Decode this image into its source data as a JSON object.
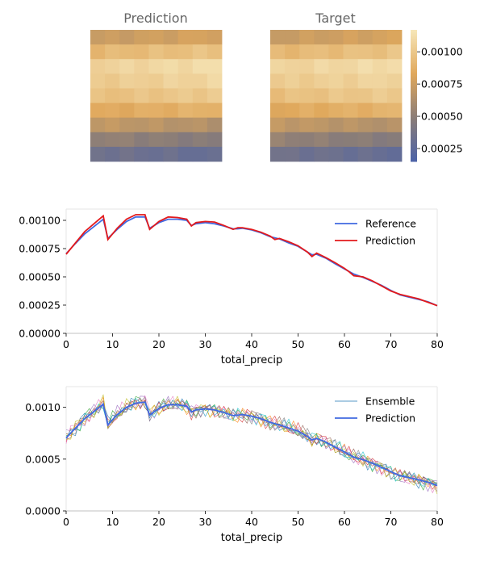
{
  "heatmaps": {
    "left_title": "Prediction",
    "right_title": "Target",
    "colorbar_ticks": [
      "0.00025",
      "0.00050",
      "0.00075",
      "0.00100"
    ],
    "colorbar_tick_values": [
      0.00025,
      0.0005,
      0.00075,
      0.001
    ],
    "colorbar_range": [
      0.00015,
      0.00117
    ],
    "colormap": [
      "#4c63a8",
      "#8a7d78",
      "#e0a85c",
      "#f6e6b8"
    ]
  },
  "chart_data": [
    {
      "type": "line",
      "xlabel": "total_precip",
      "ylabel": "",
      "xlim": [
        0,
        80
      ],
      "ylim": [
        0,
        0.0011
      ],
      "xticks": [
        "0",
        "10",
        "20",
        "30",
        "40",
        "50",
        "60",
        "70",
        "80"
      ],
      "yticks": [
        "0.00000",
        "0.00025",
        "0.00050",
        "0.00075",
        "0.00100"
      ],
      "legend_position": "top-right",
      "series": [
        {
          "name": "Reference",
          "color": "#4169e1",
          "x": [
            0,
            2,
            4,
            6,
            8,
            9,
            11,
            13,
            15,
            17,
            18,
            20,
            22,
            24,
            26,
            27,
            28,
            30,
            32,
            34,
            36,
            37,
            38,
            40,
            42,
            44,
            46,
            48,
            50,
            52,
            53,
            54,
            56,
            58,
            60,
            62,
            64,
            66,
            68,
            70,
            72,
            74,
            76,
            78,
            80
          ],
          "y": [
            0.000705,
            0.000795,
            0.00088,
            0.000945,
            0.00101,
            0.00084,
            0.00092,
            0.00099,
            0.00103,
            0.00103,
            0.00093,
            0.00098,
            0.00101,
            0.00101,
            0.001,
            0.000955,
            0.00097,
            0.00098,
            0.00097,
            0.00095,
            0.000925,
            0.000925,
            0.00093,
            0.000915,
            0.00089,
            0.000855,
            0.000835,
            0.0008,
            0.00077,
            0.00072,
            0.000695,
            0.0007,
            0.000665,
            0.000615,
            0.00057,
            0.000525,
            0.000495,
            0.00046,
            0.000425,
            0.00038,
            0.00034,
            0.00032,
            0.0003,
            0.00028,
            0.000245
          ]
        },
        {
          "name": "Prediction",
          "color": "#e31a1c",
          "x": [
            0,
            2,
            4,
            6,
            8,
            9,
            11,
            13,
            15,
            17,
            18,
            20,
            22,
            24,
            26,
            27,
            28,
            30,
            32,
            34,
            36,
            37,
            38,
            40,
            42,
            44,
            45,
            46,
            48,
            50,
            52,
            53,
            54,
            56,
            58,
            60,
            61,
            62,
            64,
            66,
            68,
            70,
            72,
            74,
            76,
            78,
            80
          ],
          "y": [
            0.0007,
            0.0008,
            0.0009,
            0.00097,
            0.00104,
            0.00083,
            0.00093,
            0.00101,
            0.00105,
            0.00105,
            0.00092,
            0.00099,
            0.00103,
            0.001025,
            0.00101,
            0.00095,
            0.00098,
            0.00099,
            0.000985,
            0.000955,
            0.00092,
            0.000935,
            0.000935,
            0.00092,
            0.000895,
            0.00086,
            0.00083,
            0.00084,
            0.00081,
            0.000775,
            0.00072,
            0.00068,
            0.00071,
            0.00067,
            0.000625,
            0.000575,
            0.000545,
            0.00051,
            0.0005,
            0.000465,
            0.00042,
            0.000375,
            0.000345,
            0.000325,
            0.000305,
            0.000275,
            0.000245
          ]
        }
      ]
    },
    {
      "type": "line",
      "xlabel": "total_precip",
      "ylabel": "",
      "xlim": [
        0,
        80
      ],
      "ylim": [
        0,
        0.0012
      ],
      "xticks": [
        "0",
        "10",
        "20",
        "30",
        "40",
        "50",
        "60",
        "70",
        "80"
      ],
      "yticks": [
        "0.0000",
        "0.0005",
        "0.0010"
      ],
      "legend_position": "top-right",
      "ensemble_members": 10,
      "ensemble_colors": [
        "#1f77b4",
        "#ff7f0e",
        "#2ca02c",
        "#d62728",
        "#9467bd",
        "#8c564b",
        "#e377c2",
        "#7f7f7f",
        "#bcbd22",
        "#17becf"
      ],
      "series": [
        {
          "name": "Ensemble",
          "color": "#1f77b4",
          "x": [
            0,
            2,
            4,
            6,
            8,
            9,
            11,
            13,
            15,
            17,
            18,
            20,
            22,
            24,
            26,
            27,
            28,
            30,
            32,
            34,
            36,
            37,
            38,
            40,
            42,
            44,
            46,
            48,
            50,
            52,
            53,
            54,
            56,
            58,
            60,
            62,
            64,
            66,
            68,
            70,
            72,
            74,
            76,
            78,
            80
          ],
          "y": [
            0.00071,
            0.0008,
            0.00089,
            0.00096,
            0.00104,
            0.00083,
            0.00093,
            0.001,
            0.00104,
            0.00106,
            0.00093,
            0.00099,
            0.00103,
            0.00103,
            0.00101,
            0.00096,
            0.000975,
            0.000985,
            0.000975,
            0.00095,
            0.00092,
            0.000925,
            0.00093,
            0.000915,
            0.00089,
            0.00085,
            0.00083,
            0.0008,
            0.00077,
            0.00072,
            0.00068,
            0.0007,
            0.00066,
            0.000615,
            0.00057,
            0.00052,
            0.000495,
            0.00046,
            0.00042,
            0.000375,
            0.00034,
            0.00032,
            0.0003,
            0.000275,
            0.000245
          ]
        },
        {
          "name": "Prediction",
          "color": "#4169e1",
          "x": [
            0,
            2,
            4,
            6,
            8,
            9,
            11,
            13,
            15,
            17,
            18,
            20,
            22,
            24,
            26,
            27,
            28,
            30,
            32,
            34,
            36,
            37,
            38,
            40,
            42,
            44,
            46,
            48,
            50,
            52,
            53,
            54,
            56,
            58,
            60,
            62,
            64,
            66,
            68,
            70,
            72,
            74,
            76,
            78,
            80
          ],
          "y": [
            0.000705,
            0.0008,
            0.00089,
            0.00096,
            0.00103,
            0.00083,
            0.00093,
            0.001,
            0.00104,
            0.00105,
            0.000925,
            0.00099,
            0.001025,
            0.001025,
            0.00101,
            0.000955,
            0.000975,
            0.000985,
            0.000975,
            0.00095,
            0.00092,
            0.000925,
            0.00093,
            0.000915,
            0.00089,
            0.000855,
            0.00083,
            0.0008,
            0.00077,
            0.00072,
            0.000685,
            0.0007,
            0.000665,
            0.000615,
            0.00057,
            0.00052,
            0.000495,
            0.00046,
            0.00042,
            0.000378,
            0.00034,
            0.00032,
            0.0003,
            0.000278,
            0.000245
          ]
        }
      ]
    }
  ]
}
